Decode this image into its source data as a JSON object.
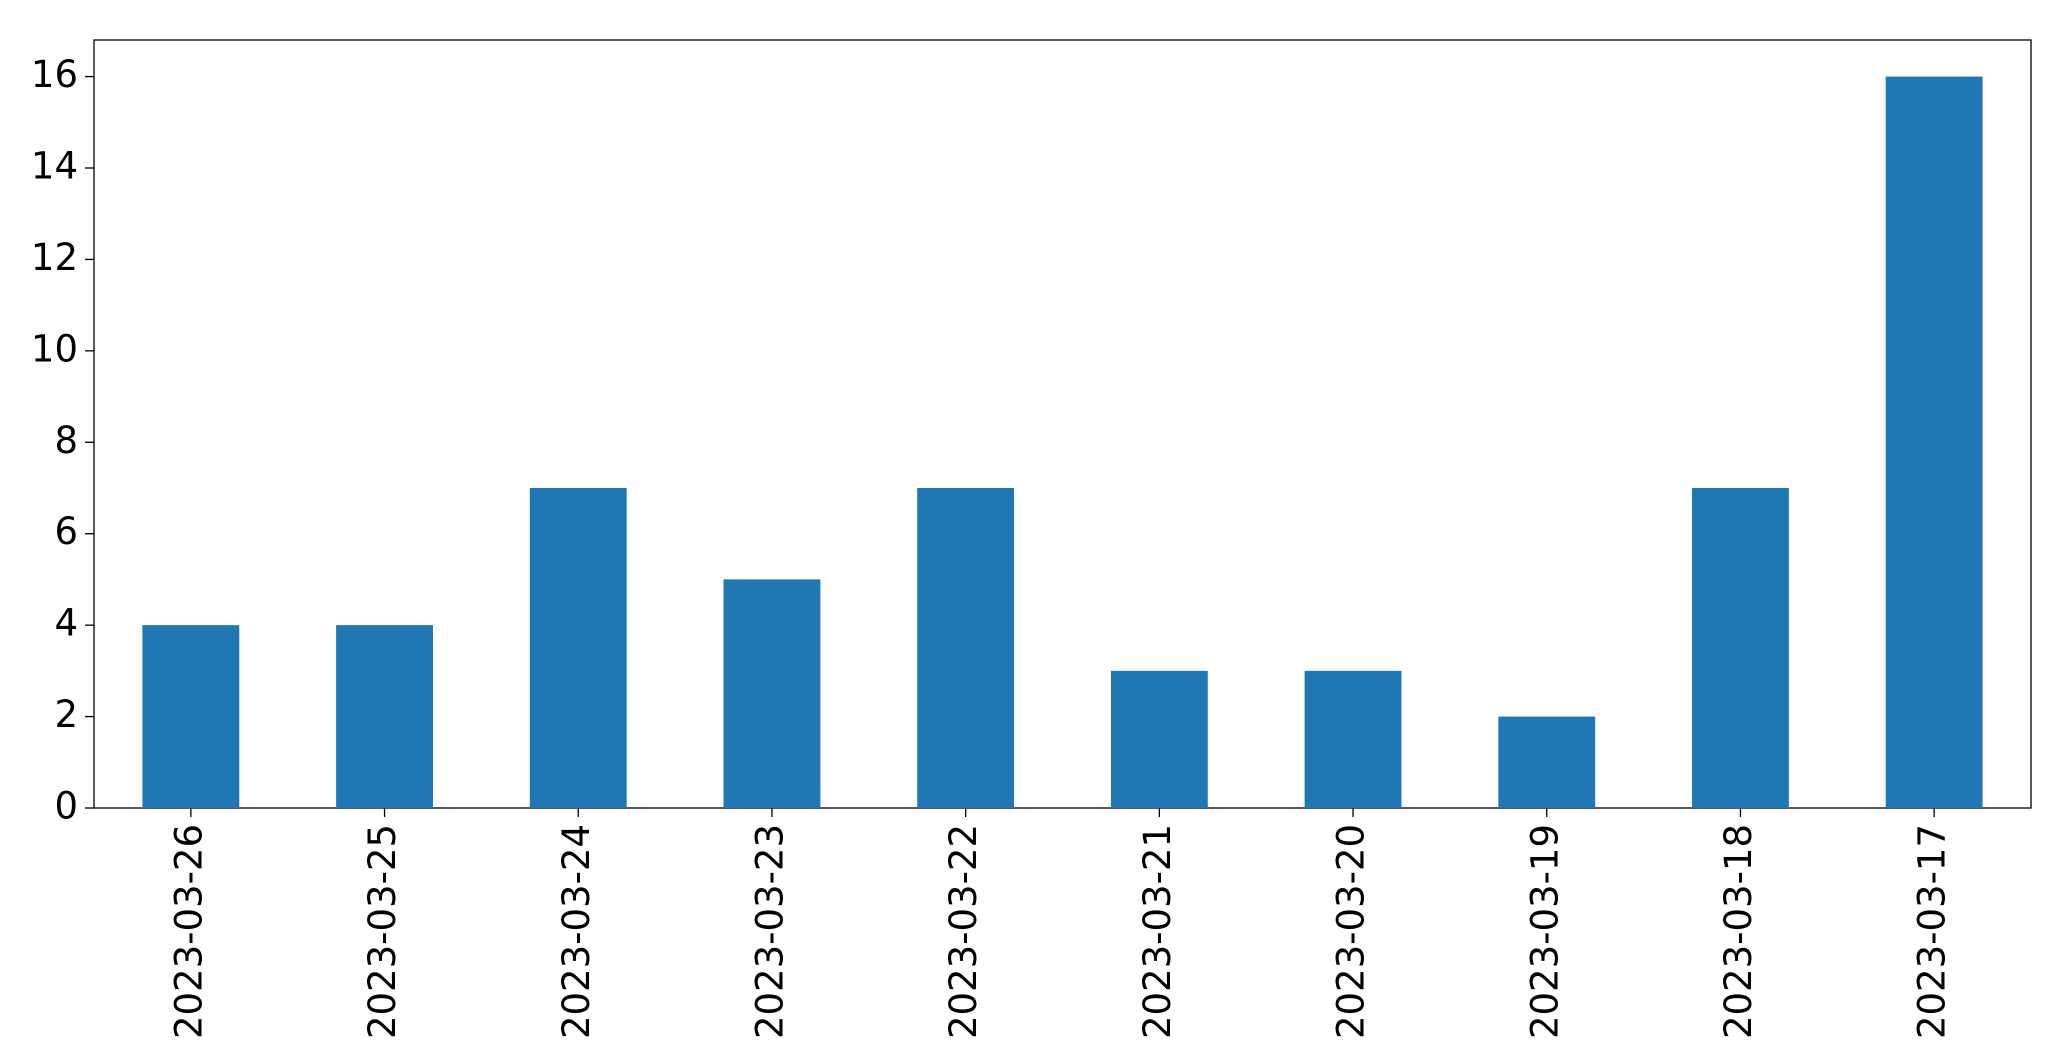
{
  "chart_data": {
    "type": "bar",
    "categories": [
      "2023-03-26",
      "2023-03-25",
      "2023-03-24",
      "2023-03-23",
      "2023-03-22",
      "2023-03-21",
      "2023-03-20",
      "2023-03-19",
      "2023-03-18",
      "2023-03-17"
    ],
    "values": [
      4,
      4,
      7,
      5,
      7,
      3,
      3,
      2,
      7,
      16
    ],
    "color": "#1f77b4",
    "ylim": [
      0,
      16.8
    ],
    "yticks": [
      0,
      2,
      4,
      6,
      8,
      10,
      12,
      14,
      16
    ],
    "grid": false
  }
}
